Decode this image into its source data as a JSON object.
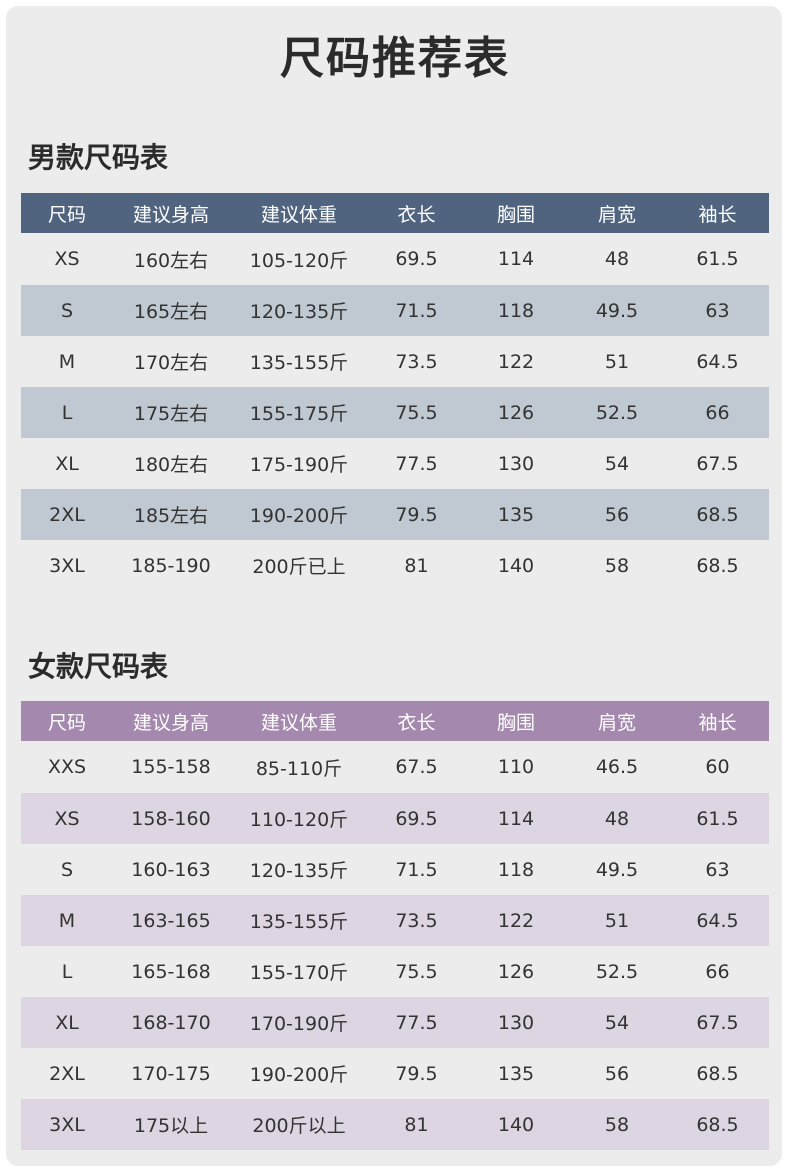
{
  "page_title": "尺码推荐表",
  "men": {
    "title": "男款尺码表",
    "headers": [
      "尺码",
      "建议身高",
      "建议体重",
      "衣长",
      "胸围",
      "肩宽",
      "袖长"
    ],
    "rows": [
      [
        "XS",
        "160左右",
        "105-120斤",
        "69.5",
        "114",
        "48",
        "61.5"
      ],
      [
        "S",
        "165左右",
        "120-135斤",
        "71.5",
        "118",
        "49.5",
        "63"
      ],
      [
        "M",
        "170左右",
        "135-155斤",
        "73.5",
        "122",
        "51",
        "64.5"
      ],
      [
        "L",
        "175左右",
        "155-175斤",
        "75.5",
        "126",
        "52.5",
        "66"
      ],
      [
        "XL",
        "180左右",
        "175-190斤",
        "77.5",
        "130",
        "54",
        "67.5"
      ],
      [
        "2XL",
        "185左右",
        "190-200斤",
        "79.5",
        "135",
        "56",
        "68.5"
      ],
      [
        "3XL",
        "185-190",
        "200斤已上",
        "81",
        "140",
        "58",
        "68.5"
      ]
    ]
  },
  "women": {
    "title": "女款尺码表",
    "headers": [
      "尺码",
      "建议身高",
      "建议体重",
      "衣长",
      "胸围",
      "肩宽",
      "袖长"
    ],
    "rows": [
      [
        "XXS",
        "155-158",
        "85-110斤",
        "67.5",
        "110",
        "46.5",
        "60"
      ],
      [
        "XS",
        "158-160",
        "110-120斤",
        "69.5",
        "114",
        "48",
        "61.5"
      ],
      [
        "S",
        "160-163",
        "120-135斤",
        "71.5",
        "118",
        "49.5",
        "63"
      ],
      [
        "M",
        "163-165",
        "135-155斤",
        "73.5",
        "122",
        "51",
        "64.5"
      ],
      [
        "L",
        "165-168",
        "155-170斤",
        "75.5",
        "126",
        "52.5",
        "66"
      ],
      [
        "XL",
        "168-170",
        "170-190斤",
        "77.5",
        "130",
        "54",
        "67.5"
      ],
      [
        "2XL",
        "170-175",
        "190-200斤",
        "79.5",
        "135",
        "56",
        "68.5"
      ],
      [
        "3XL",
        "175以上",
        "200斤以上",
        "81",
        "140",
        "58",
        "68.5"
      ]
    ]
  },
  "colors": {
    "men_header": "#50647f",
    "men_stripe": "#c0c8d1",
    "women_header": "#a488ad",
    "women_stripe": "#ddd5e1",
    "background": "#ececec"
  }
}
